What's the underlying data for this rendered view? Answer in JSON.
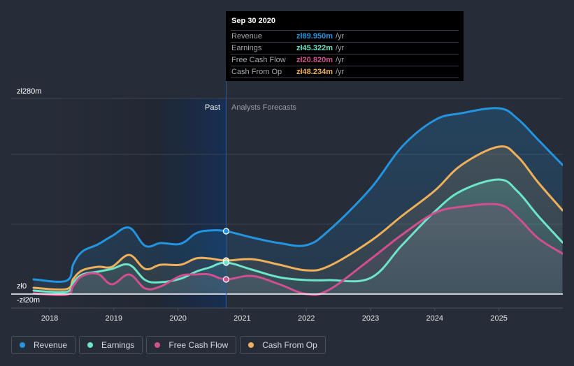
{
  "tooltip": {
    "date": "Sep 30 2020",
    "rows": [
      {
        "label": "Revenue",
        "value": "zł89.950m",
        "unit": "/yr",
        "color": "#2394df"
      },
      {
        "label": "Earnings",
        "value": "zł45.322m",
        "unit": "/yr",
        "color": "#6ce5c8"
      },
      {
        "label": "Free Cash Flow",
        "value": "zł20.820m",
        "unit": "/yr",
        "color": "#d04f8f"
      },
      {
        "label": "Cash From Op",
        "value": "zł48.234m",
        "unit": "/yr",
        "color": "#f0b05a"
      }
    ]
  },
  "legend": [
    {
      "label": "Revenue",
      "color": "#2394df"
    },
    {
      "label": "Earnings",
      "color": "#6ce5c8"
    },
    {
      "label": "Free Cash Flow",
      "color": "#d04f8f"
    },
    {
      "label": "Cash From Op",
      "color": "#f0b05a"
    }
  ],
  "chart_data": {
    "type": "area",
    "title": "",
    "xlabel": "",
    "ylabel": "",
    "currency_prefix": "zł",
    "ylim": [
      -20,
      280
    ],
    "xlim": [
      2017.75,
      2025.99
    ],
    "y_tick_labels": [
      "zł280m",
      "zł0",
      "-zł20m"
    ],
    "y_gridlines": [
      280,
      200,
      100,
      0
    ],
    "x_ticks": [
      2018,
      2019,
      2020,
      2021,
      2022,
      2023,
      2024,
      2025
    ],
    "x_tick_labels": [
      "2018",
      "2019",
      "2020",
      "2021",
      "2022",
      "2023",
      "2024",
      "2025"
    ],
    "grid": true,
    "legend_position": "bottom-left",
    "past_label": "Past",
    "forecast_label": "Analysts Forecasts",
    "past_end": 2020.75,
    "shaded_past_start": 2019.73,
    "cursor_x": 2020.75,
    "series": [
      {
        "name": "Revenue",
        "color": "#2394df",
        "points": [
          [
            2017.75,
            21
          ],
          [
            2018.26,
            19
          ],
          [
            2018.37,
            43
          ],
          [
            2018.51,
            61
          ],
          [
            2018.75,
            71
          ],
          [
            2018.97,
            83
          ],
          [
            2019.24,
            95
          ],
          [
            2019.49,
            69
          ],
          [
            2019.73,
            73
          ],
          [
            2020.04,
            72
          ],
          [
            2020.28,
            87
          ],
          [
            2020.49,
            91
          ],
          [
            2020.75,
            90
          ],
          [
            2021.15,
            81
          ],
          [
            2021.58,
            73
          ],
          [
            2022.0,
            70
          ],
          [
            2022.35,
            91
          ],
          [
            2023.0,
            151
          ],
          [
            2023.49,
            211
          ],
          [
            2024.0,
            249
          ],
          [
            2024.42,
            259
          ],
          [
            2025.0,
            266
          ],
          [
            2025.29,
            251
          ],
          [
            2025.61,
            221
          ],
          [
            2025.99,
            185
          ]
        ]
      },
      {
        "name": "Cash From Op",
        "color": "#f0b05a",
        "points": [
          [
            2017.75,
            9
          ],
          [
            2018.26,
            7
          ],
          [
            2018.37,
            22
          ],
          [
            2018.51,
            34
          ],
          [
            2018.75,
            39
          ],
          [
            2018.97,
            39
          ],
          [
            2019.24,
            56
          ],
          [
            2019.49,
            36
          ],
          [
            2019.73,
            42
          ],
          [
            2020.04,
            42
          ],
          [
            2020.28,
            51
          ],
          [
            2020.49,
            51
          ],
          [
            2020.75,
            48
          ],
          [
            2021.15,
            50
          ],
          [
            2021.58,
            42
          ],
          [
            2022.0,
            34
          ],
          [
            2022.35,
            40
          ],
          [
            2023.0,
            76
          ],
          [
            2023.49,
            112
          ],
          [
            2024.0,
            148
          ],
          [
            2024.42,
            185
          ],
          [
            2025.0,
            211
          ],
          [
            2025.29,
            197
          ],
          [
            2025.61,
            160
          ],
          [
            2025.99,
            120
          ]
        ]
      },
      {
        "name": "Earnings",
        "color": "#6ce5c8",
        "points": [
          [
            2017.75,
            5
          ],
          [
            2018.26,
            3
          ],
          [
            2018.37,
            17
          ],
          [
            2018.51,
            28
          ],
          [
            2018.75,
            32
          ],
          [
            2018.97,
            36
          ],
          [
            2019.24,
            42
          ],
          [
            2019.49,
            20
          ],
          [
            2019.73,
            17
          ],
          [
            2020.04,
            22
          ],
          [
            2020.28,
            32
          ],
          [
            2020.49,
            38
          ],
          [
            2020.75,
            45
          ],
          [
            2021.15,
            35
          ],
          [
            2021.58,
            24
          ],
          [
            2022.0,
            20
          ],
          [
            2022.35,
            20
          ],
          [
            2023.0,
            23
          ],
          [
            2023.49,
            70
          ],
          [
            2024.0,
            118
          ],
          [
            2024.42,
            148
          ],
          [
            2025.0,
            164
          ],
          [
            2025.29,
            147
          ],
          [
            2025.61,
            112
          ],
          [
            2025.99,
            74
          ]
        ]
      },
      {
        "name": "Free Cash Flow",
        "color": "#d04f8f",
        "points": [
          [
            2017.75,
            1
          ],
          [
            2018.26,
            -1
          ],
          [
            2018.37,
            12
          ],
          [
            2018.51,
            26
          ],
          [
            2018.75,
            29
          ],
          [
            2018.97,
            14
          ],
          [
            2019.24,
            28
          ],
          [
            2019.49,
            8
          ],
          [
            2019.73,
            11
          ],
          [
            2020.04,
            26
          ],
          [
            2020.28,
            28
          ],
          [
            2020.49,
            28
          ],
          [
            2020.75,
            21
          ],
          [
            2021.15,
            26
          ],
          [
            2021.58,
            14
          ],
          [
            2022.0,
            0
          ],
          [
            2022.35,
            6
          ],
          [
            2023.0,
            50
          ],
          [
            2023.49,
            85
          ],
          [
            2024.0,
            116
          ],
          [
            2024.42,
            125
          ],
          [
            2025.0,
            128
          ],
          [
            2025.29,
            110
          ],
          [
            2025.61,
            80
          ],
          [
            2025.99,
            58
          ]
        ]
      }
    ]
  }
}
